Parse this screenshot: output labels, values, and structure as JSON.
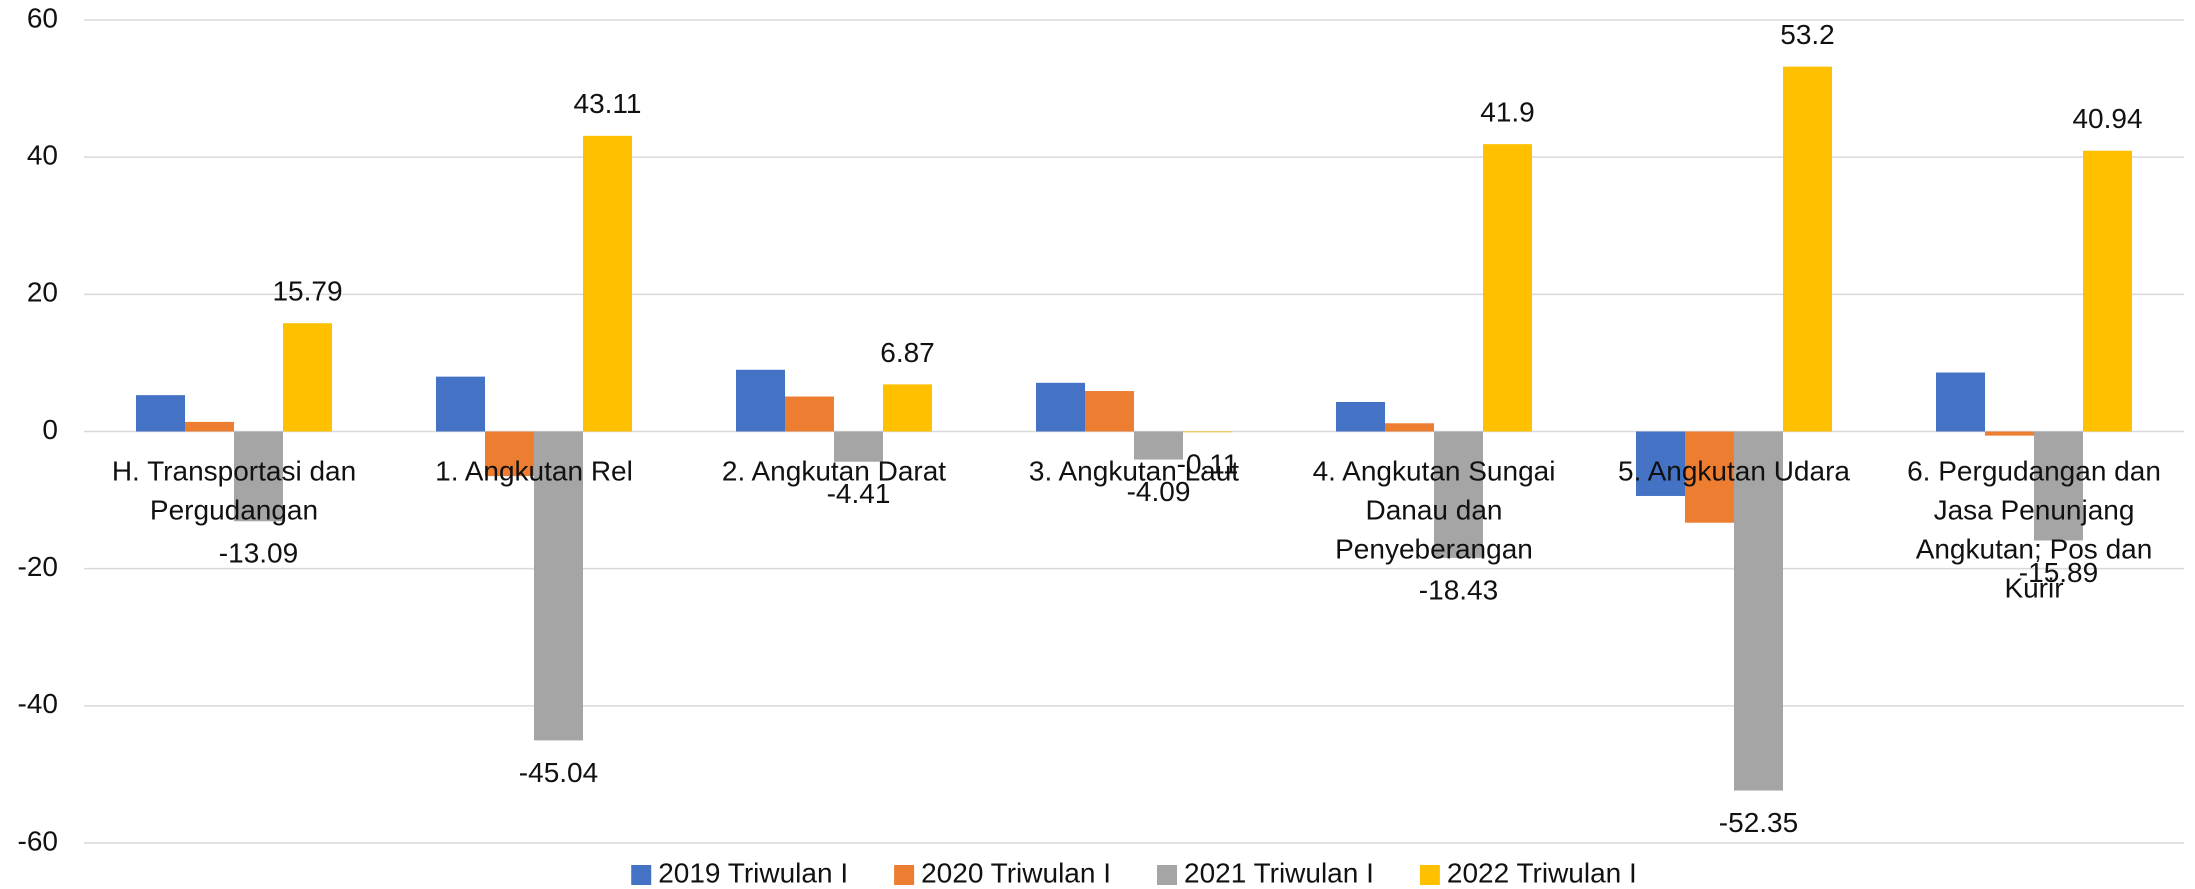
{
  "chart_data": {
    "type": "bar",
    "categories": [
      "H. Transportasi dan Pergudangan",
      "1. Angkutan Rel",
      "2. Angkutan Darat",
      "3. Angkutan Laut",
      "4. Angkutan Sungai Danau dan Penyeberangan",
      "5. Angkutan Udara",
      "6. Pergudangan dan Jasa Penunjang Angkutan; Pos dan Kurir"
    ],
    "series": [
      {
        "name": "2019 Triwulan I",
        "color": "#4472c4",
        "values": [
          5.3,
          8.0,
          9.0,
          7.1,
          4.3,
          -9.4,
          8.6
        ]
      },
      {
        "name": "2020 Triwulan I",
        "color": "#ed7d31",
        "values": [
          1.4,
          -6.5,
          5.1,
          5.9,
          1.2,
          -13.3,
          -0.6
        ]
      },
      {
        "name": "2021 Triwulan I",
        "color": "#a5a5a5",
        "values": [
          -13.09,
          -45.04,
          -4.41,
          -4.09,
          -18.43,
          -52.35,
          -15.89
        ]
      },
      {
        "name": "2022 Triwulan I",
        "color": "#ffc000",
        "values": [
          15.79,
          43.11,
          6.87,
          -0.11,
          41.9,
          53.2,
          40.94
        ]
      }
    ],
    "labeled_series": [
      2,
      3
    ],
    "ylim": [
      -60,
      60
    ],
    "yticks": [
      -60,
      -40,
      -20,
      0,
      20,
      40,
      60
    ],
    "grid": true,
    "legend": "bottom"
  }
}
